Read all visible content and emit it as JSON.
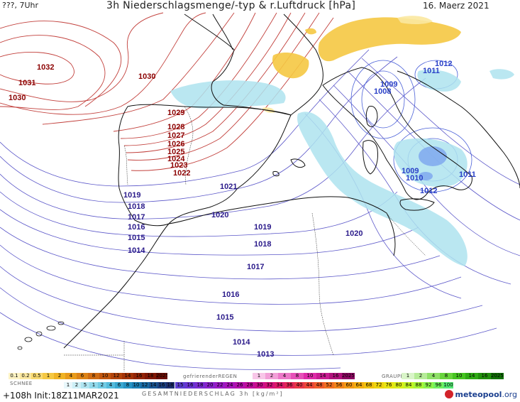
{
  "header": {
    "left": "???, 7Uhr",
    "title": "3h Niederschlagsmenge/-typ & r.Luftdruck [hPa]",
    "date": "16. Maerz 2021"
  },
  "footer": {
    "run": "+108h  Init:18Z11MAR2021",
    "total_label": "GESAMTNIEDERSCHLAG 3h [kg/m²]",
    "snow_label": "SCHNEE",
    "freezing_label": "gefrierenderREGEN",
    "graupel_label": "GRAUPEL",
    "logo": "meteopool",
    "logo_suffix": ".org"
  },
  "legends": {
    "top_left": [
      "0.1",
      "0.2",
      "0.5",
      "1",
      "2",
      "4",
      "6",
      "8",
      "10",
      "12",
      "14",
      "16",
      "18",
      "2025+"
    ],
    "top_left_colors": [
      "#fdf3c4",
      "#fbe8a0",
      "#f8d970",
      "#f5c842",
      "#f0b324",
      "#e89b1a",
      "#dd8316",
      "#d06b12",
      "#c2570e",
      "#b3440b",
      "#a33308",
      "#922406",
      "#801704",
      "#6b0c02"
    ],
    "freezing": [
      "1",
      "2",
      "4",
      "8",
      "10",
      "14",
      "16",
      "2025+"
    ],
    "freezing_colors": [
      "#f8c6e8",
      "#f29fd8",
      "#ec78c8",
      "#e651b8",
      "#df2aa8",
      "#c91c92",
      "#b0117c",
      "#8f0763"
    ],
    "graupel": [
      "1",
      "2",
      "4",
      "8",
      "10",
      "14",
      "16",
      "2025+"
    ],
    "graupel_colors": [
      "#d9f5c8",
      "#b6ec98",
      "#8fe068",
      "#68d43c",
      "#45c420",
      "#2fab14",
      "#21900c",
      "#127306"
    ],
    "snow": [
      "1",
      "2",
      "5",
      "1",
      "2",
      "4",
      "6",
      "8",
      "10",
      "12",
      "14",
      "16",
      "18"
    ],
    "snow_colors": [
      "#e8f7fb",
      "#cdeff6",
      "#b0e5f1",
      "#92d9eb",
      "#72cbe4",
      "#55bbdb",
      "#3aa8d0",
      "#2693c3",
      "#1c7fb4",
      "#1a6aa3",
      "#1a5592",
      "#1b4080",
      "#1c2e6e"
    ],
    "total": [
      "15",
      "16",
      "18",
      "20",
      "22",
      "24",
      "26",
      "28",
      "30",
      "32",
      "34",
      "36",
      "40",
      "44",
      "48",
      "52",
      "56",
      "60",
      "64",
      "68",
      "72",
      "76",
      "80",
      "84",
      "88",
      "92",
      "96",
      "100"
    ],
    "total_colors": [
      "#5d3fd0",
      "#6a34d2",
      "#7a2bd0",
      "#8a22cc",
      "#9a1ac4",
      "#a814ba",
      "#b510ac",
      "#c10e9c",
      "#cc0e8c",
      "#d5127a",
      "#dd1a68",
      "#e32656",
      "#e83646",
      "#ec4838",
      "#ef5c2c",
      "#f17022",
      "#f2851a",
      "#f39a14",
      "#f3ae10",
      "#f1c20e",
      "#eed40e",
      "#e8e412",
      "#d9ee1a",
      "#c3f428",
      "#a8f638",
      "#8cf44c",
      "#70f060",
      "#56ea76"
    ]
  },
  "isobars_high": [
    "1032",
    "1031",
    "1030",
    "1030",
    "1029",
    "1028",
    "1027",
    "1026",
    "1025",
    "1024",
    "1023",
    "1022"
  ],
  "isobars_low": [
    "1021",
    "1020",
    "1019",
    "1018",
    "1017",
    "1016",
    "1015",
    "1014",
    "1019",
    "1018",
    "1017",
    "1016",
    "1015",
    "1014",
    "1013",
    "1020"
  ],
  "isobars_italy": [
    "1012",
    "1011",
    "1009",
    "1008",
    "1009",
    "1010",
    "1011",
    "1012"
  ]
}
